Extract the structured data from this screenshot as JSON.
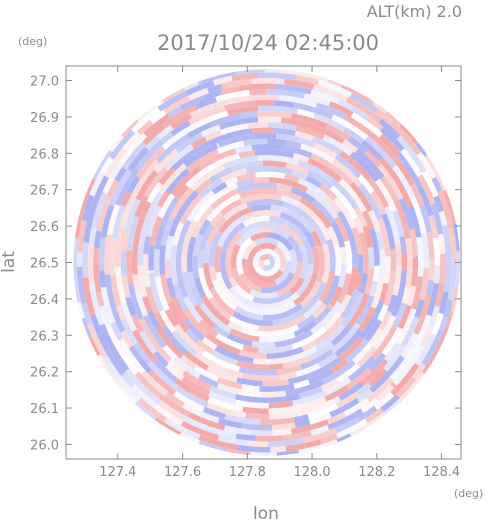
{
  "chart_data": {
    "type": "heatmap",
    "title": "2017/10/24 02:45:00",
    "subtitle": "ALT(km) 2.0",
    "xlabel": "lon",
    "ylabel": "lat",
    "x_unit": "(deg)",
    "y_unit": "(deg)",
    "xlim": [
      127.24,
      128.46
    ],
    "ylim": [
      25.96,
      27.04
    ],
    "x_ticks": [
      127.4,
      127.6,
      127.8,
      128.0,
      128.2,
      128.4
    ],
    "y_ticks": [
      26.0,
      26.1,
      26.2,
      26.3,
      26.4,
      26.5,
      26.6,
      26.7,
      26.8,
      26.9,
      27.0
    ],
    "x_tick_labels": [
      "127.4",
      "127.6",
      "127.8",
      "128.0",
      "128.2",
      "128.4"
    ],
    "y_tick_labels": [
      "26.0",
      "26.1",
      "26.2",
      "26.3",
      "26.4",
      "26.5",
      "26.6",
      "26.7",
      "26.8",
      "26.9",
      "27.0"
    ],
    "center": {
      "lon": 127.86,
      "lat": 26.5
    },
    "radius_deg": 0.6,
    "colors": {
      "positive": "#f4a6a6",
      "negative": "#a9b0f2",
      "neutral": "#ffffff"
    }
  }
}
